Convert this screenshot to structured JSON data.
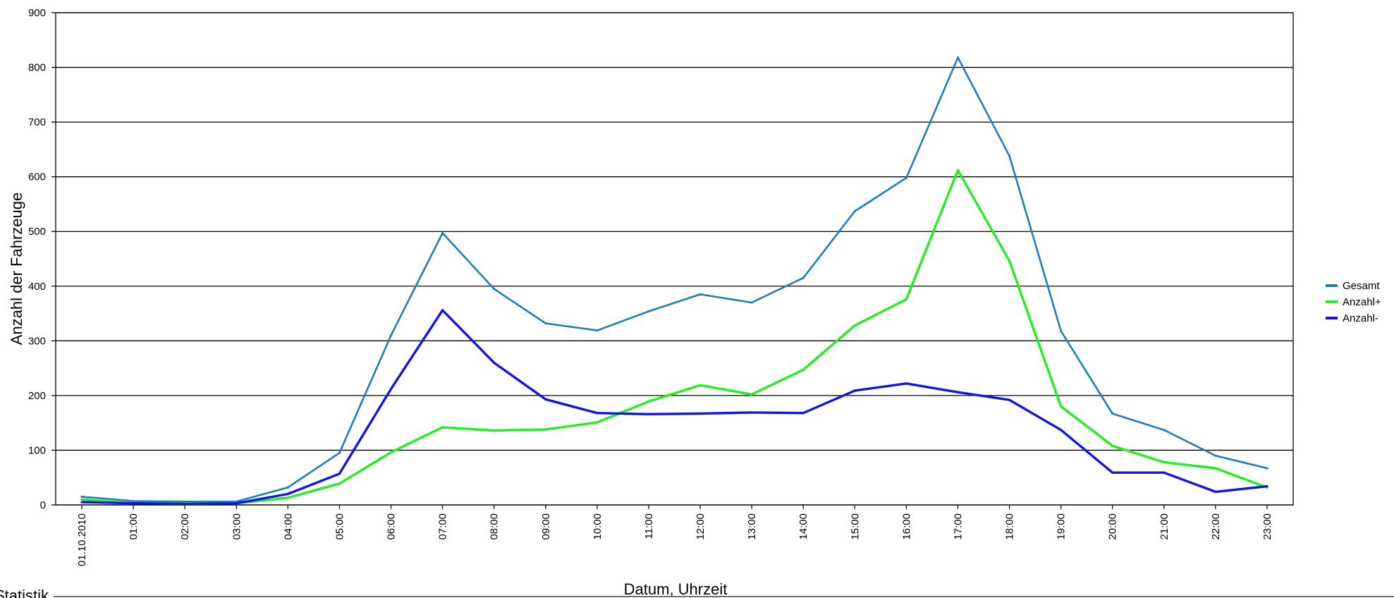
{
  "chart_data": {
    "type": "line",
    "xlabel": "Datum, Uhrzeit",
    "ylabel": "Anzahl der Fahrzeuge",
    "ylim": [
      0,
      900
    ],
    "yticks": [
      0,
      100,
      200,
      300,
      400,
      500,
      600,
      700,
      800,
      900
    ],
    "grid": true,
    "legend_position": "right",
    "categories": [
      "01.10.2010",
      "01:00",
      "02:00",
      "03:00",
      "04:00",
      "05:00",
      "06:00",
      "07:00",
      "08:00",
      "09:00",
      "10:00",
      "11:00",
      "12:00",
      "13:00",
      "14:00",
      "15:00",
      "16:00",
      "17:00",
      "18:00",
      "19:00",
      "20:00",
      "21:00",
      "22:00",
      "23:00"
    ],
    "series": [
      {
        "name": "Gesamt",
        "color": "#1a7fc0",
        "values": [
          15,
          7,
          6,
          6,
          32,
          95,
          310,
          497,
          395,
          332,
          319,
          354,
          385,
          370,
          415,
          537,
          598,
          818,
          638,
          318,
          167,
          137,
          90,
          67
        ]
      },
      {
        "name": "Anzahl+",
        "color": "#22ee22",
        "values": [
          10,
          3,
          3,
          3,
          13,
          39,
          96,
          142,
          136,
          138,
          151,
          189,
          219,
          202,
          247,
          328,
          376,
          612,
          446,
          180,
          108,
          78,
          67,
          32
        ]
      },
      {
        "name": "Anzahl-",
        "color": "#1414e0",
        "values": [
          5,
          3,
          2,
          3,
          20,
          57,
          212,
          356,
          260,
          193,
          168,
          166,
          167,
          169,
          168,
          209,
          222,
          206,
          192,
          137,
          59,
          59,
          24,
          34
        ]
      }
    ]
  },
  "footer": {
    "label": "Statistik"
  }
}
